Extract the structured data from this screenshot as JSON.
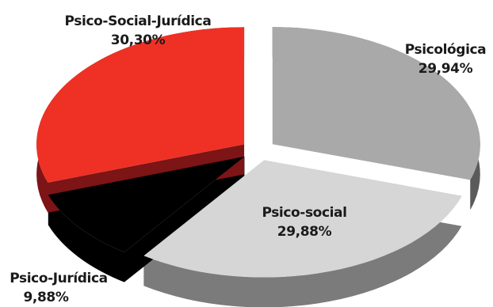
{
  "chart_data": {
    "type": "pie",
    "style": "3d-exploded",
    "title": "",
    "slices": [
      {
        "name": "Psicológica",
        "value": 29.94,
        "label": "29,94%",
        "color": "#a9a9a9",
        "side_color": "#5a5a5a"
      },
      {
        "name": "Psico-social",
        "value": 29.88,
        "label": "29,88%",
        "color": "#d6d6d6",
        "side_color": "#7b7b7b"
      },
      {
        "name": "Psico-Jurídica",
        "value": 9.88,
        "label": "9,88%",
        "color": "#000000",
        "side_color": "#000000"
      },
      {
        "name": "Psico-Social-Jurídica",
        "value": 30.3,
        "label": "30,30%",
        "color": "#ee3124",
        "side_color": "#7d1416"
      }
    ]
  }
}
